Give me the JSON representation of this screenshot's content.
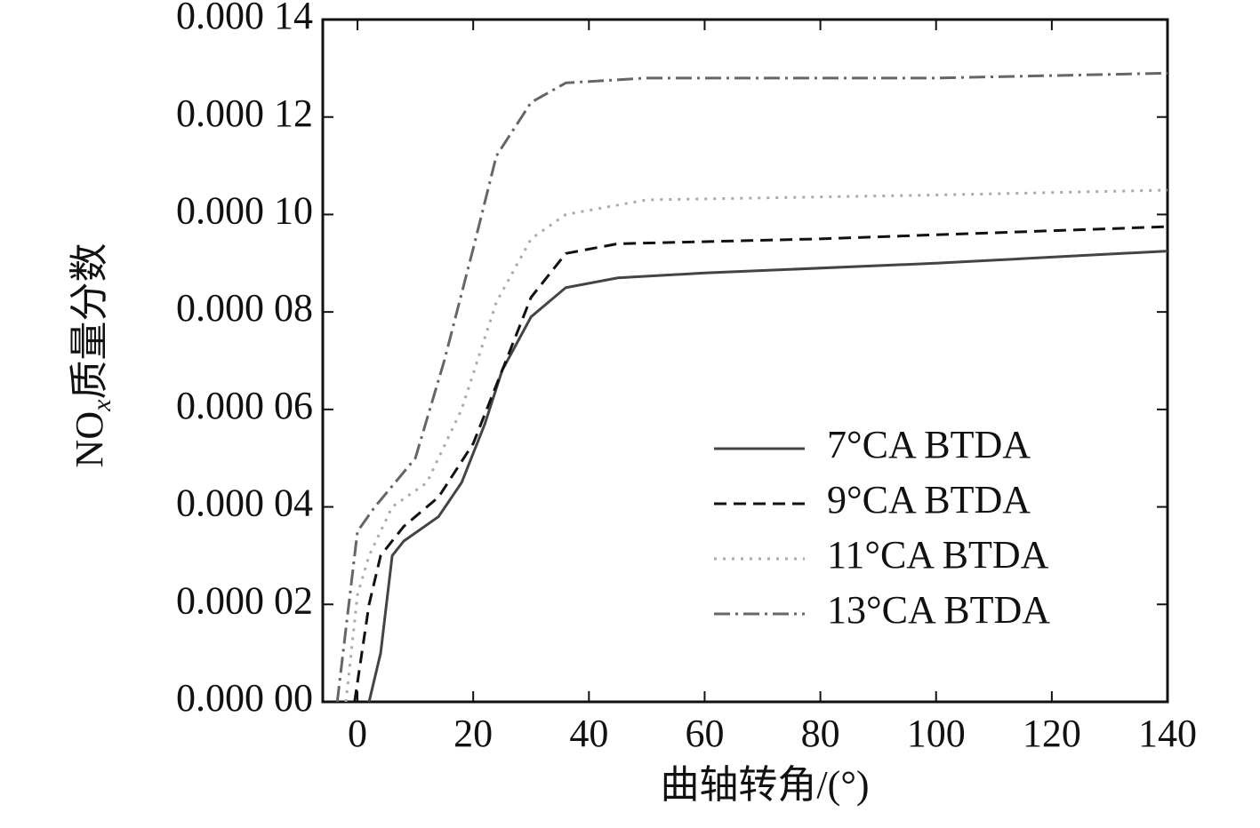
{
  "chart_data": {
    "type": "line",
    "xlabel": "曲轴转角/(°)",
    "ylabel": [
      "NO",
      "x",
      "质量分数"
    ],
    "xlim": [
      -6,
      140
    ],
    "xticks": [
      0,
      20,
      40,
      60,
      80,
      100,
      120,
      140
    ],
    "ylim": [
      0,
      0.00014
    ],
    "yticks": [
      {
        "value": 0,
        "label": "0.000 00"
      },
      {
        "value": 2e-05,
        "label": "0.000 02"
      },
      {
        "value": 4e-05,
        "label": "0.000 04"
      },
      {
        "value": 6e-05,
        "label": "0.000 06"
      },
      {
        "value": 8e-05,
        "label": "0.000 08"
      },
      {
        "value": 0.0001,
        "label": "0.000 10"
      },
      {
        "value": 0.00012,
        "label": "0.000 12"
      },
      {
        "value": 0.00014,
        "label": "0.000 14"
      }
    ],
    "legend": "lower right",
    "series": [
      {
        "name": "7°CA BTDA",
        "color": "#444444",
        "linestyle": "solid",
        "x": [
          2,
          4,
          6,
          8,
          14,
          18,
          22,
          25,
          30,
          36,
          45,
          60,
          100,
          140
        ],
        "values": [
          0,
          1e-05,
          3e-05,
          3.3e-05,
          3.8e-05,
          4.5e-05,
          5.7e-05,
          6.8e-05,
          7.9e-05,
          8.5e-05,
          8.7e-05,
          8.8e-05,
          9e-05,
          9.25e-05
        ]
      },
      {
        "name": "9°CA BTDA",
        "color": "#111111",
        "linestyle": "dashed",
        "x": [
          -0.5,
          2,
          4,
          8,
          14,
          20,
          25,
          30,
          36,
          45,
          80,
          140
        ],
        "values": [
          0,
          2e-05,
          3e-05,
          3.6e-05,
          4.2e-05,
          5.3e-05,
          6.8e-05,
          8.3e-05,
          9.2e-05,
          9.4e-05,
          9.5e-05,
          9.75e-05
        ]
      },
      {
        "name": "11°CA BTDA",
        "color": "#aaaaaa",
        "linestyle": "dotted",
        "x": [
          -2,
          0,
          2,
          6,
          12,
          18,
          24,
          30,
          36,
          50,
          100,
          140
        ],
        "values": [
          0,
          2.2e-05,
          3e-05,
          4e-05,
          4.5e-05,
          6e-05,
          8.2e-05,
          9.5e-05,
          0.0001,
          0.000103,
          0.000104,
          0.000105
        ]
      },
      {
        "name": "13°CA BTDA",
        "color": "#666666",
        "linestyle": "dashdot",
        "x": [
          -3.5,
          -1.5,
          0,
          3,
          10,
          15,
          20,
          24,
          30,
          36,
          50,
          100,
          140
        ],
        "values": [
          0,
          2e-05,
          3.5e-05,
          4e-05,
          5e-05,
          7e-05,
          9.3e-05,
          0.000112,
          0.000123,
          0.000127,
          0.000128,
          0.000128,
          0.000129
        ]
      }
    ]
  }
}
